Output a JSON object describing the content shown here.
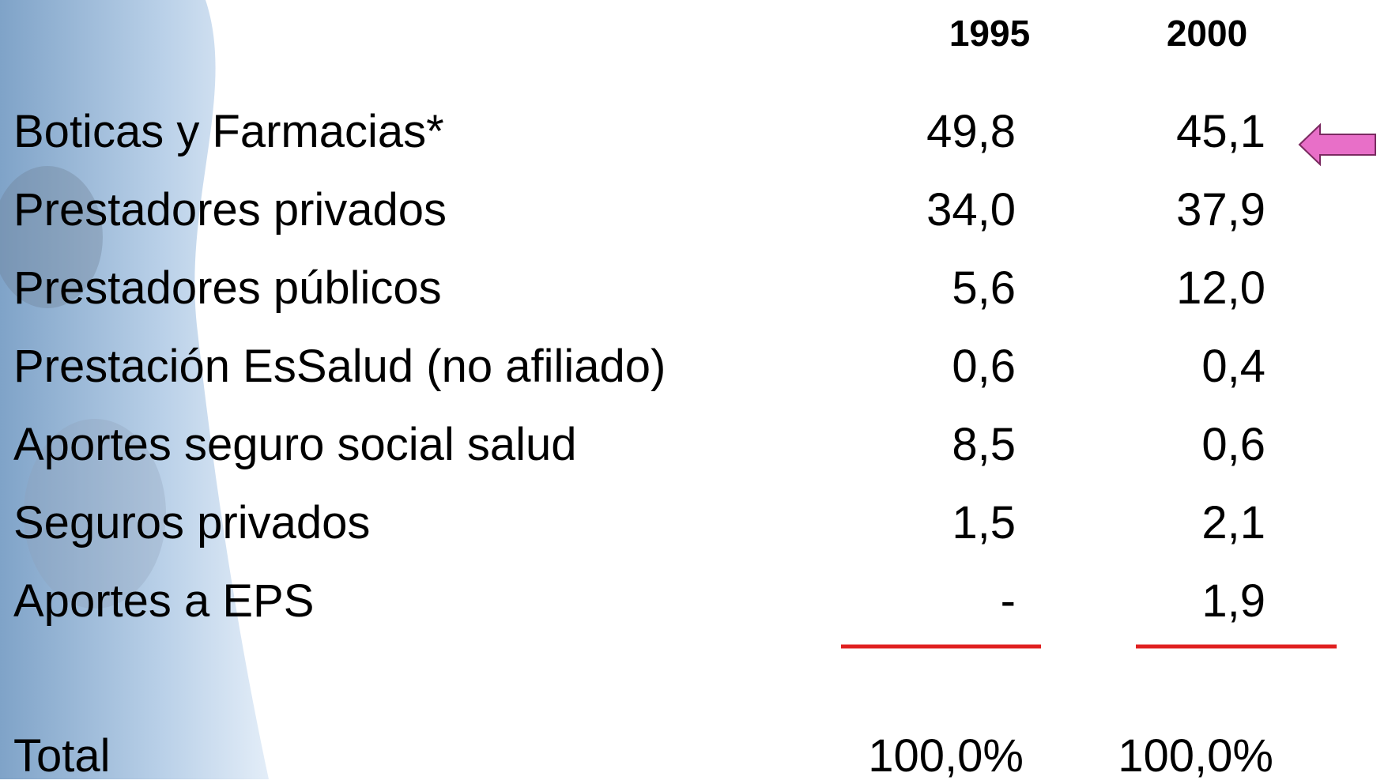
{
  "table": {
    "header": [
      "1995",
      "2000"
    ],
    "rows": [
      [
        "Boticas y Farmacias*",
        "49,8",
        "45,1"
      ],
      [
        "Prestadores privados",
        "34,0",
        "37,9"
      ],
      [
        "Prestadores públicos",
        "5,6",
        "12,0"
      ],
      [
        "Prestación EsSalud (no afiliado)",
        "0,6",
        "0,4"
      ],
      [
        "Aportes seguro social salud",
        "8,5",
        "0,6"
      ],
      [
        "Seguros privados",
        "1,5",
        "2,1"
      ],
      [
        "Aportes a EPS",
        "-",
        "1,9"
      ]
    ],
    "total": [
      "Total",
      "100,0%",
      "100,0%"
    ]
  }
}
